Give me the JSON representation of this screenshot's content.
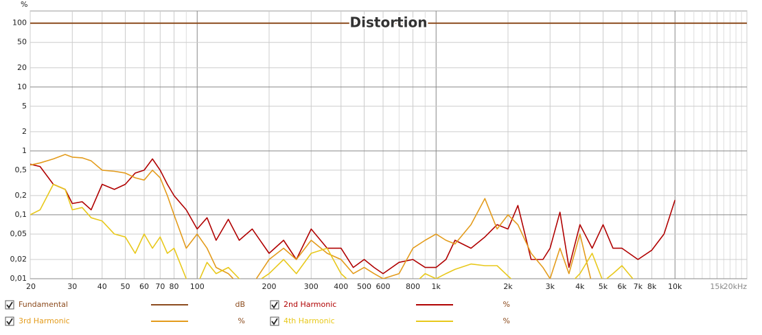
{
  "chart_data": {
    "type": "line",
    "title": "Distortion",
    "y_unit_label": "%",
    "xlim": [
      20,
      20000
    ],
    "ylim": [
      0.01,
      155
    ],
    "log_x": true,
    "log_y": true,
    "grid": true,
    "xticks": [
      20,
      30,
      40,
      50,
      60,
      70,
      80,
      100,
      200,
      300,
      400,
      500,
      600,
      800,
      {
        "value": 1000,
        "label": "1k"
      },
      {
        "value": 2000,
        "label": "2k"
      },
      {
        "value": 3000,
        "label": "3k"
      },
      {
        "value": 4000,
        "label": "4k"
      },
      {
        "value": 5000,
        "label": "5k"
      },
      {
        "value": 6000,
        "label": "6k"
      },
      {
        "value": 7000,
        "label": "7k"
      },
      {
        "value": 8000,
        "label": "8k"
      },
      {
        "value": 10000,
        "label": "10k"
      },
      {
        "value": 15000,
        "label": "15k"
      },
      {
        "value": 20000,
        "label": "20kHz"
      }
    ],
    "xminorticks": [
      90,
      700,
      900,
      9000,
      11000,
      12000,
      13000,
      14000,
      16000,
      17000,
      18000,
      19000
    ],
    "yticks": [
      100,
      50,
      20,
      10,
      5,
      2,
      1,
      {
        "value": 0.5,
        "label": "0,5"
      },
      {
        "value": 0.2,
        "label": "0,2"
      },
      {
        "value": 0.1,
        "label": "0,1"
      },
      {
        "value": 0.05,
        "label": "0,05"
      },
      {
        "value": 0.02,
        "label": "0,02"
      },
      {
        "value": 0.01,
        "label": "0,01"
      }
    ],
    "x": [
      20,
      22,
      25,
      28,
      30,
      33,
      36,
      40,
      45,
      50,
      55,
      60,
      65,
      70,
      75,
      80,
      90,
      100,
      110,
      120,
      135,
      150,
      170,
      200,
      230,
      260,
      300,
      350,
      400,
      450,
      500,
      550,
      600,
      700,
      800,
      900,
      1000,
      1100,
      1200,
      1400,
      1600,
      1800,
      2000,
      2200,
      2500,
      2800,
      3000,
      3300,
      3600,
      4000,
      4500,
      5000,
      5500,
      6000,
      7000,
      8000,
      9000,
      10000
    ],
    "series": [
      {
        "name": "Fundamental",
        "unit": "dB",
        "color": "#8b4a1c",
        "x": [
          20,
          20000
        ],
        "values": [
          100,
          100
        ]
      },
      {
        "name": "2nd Harmonic",
        "unit": "%",
        "color": "#b00000",
        "values": [
          0.62,
          0.57,
          0.3,
          0.25,
          0.15,
          0.16,
          0.12,
          0.3,
          0.25,
          0.3,
          0.45,
          0.5,
          0.75,
          0.5,
          0.3,
          0.2,
          0.12,
          0.06,
          0.09,
          0.04,
          0.085,
          0.04,
          0.06,
          0.025,
          0.04,
          0.02,
          0.06,
          0.03,
          0.03,
          0.015,
          0.02,
          0.015,
          0.012,
          0.018,
          0.02,
          0.015,
          0.015,
          0.02,
          0.04,
          0.03,
          0.045,
          0.07,
          0.06,
          0.14,
          0.02,
          0.02,
          0.03,
          0.11,
          0.015,
          0.07,
          0.03,
          0.07,
          0.03,
          0.03,
          0.02,
          0.028,
          0.05,
          0.17
        ]
      },
      {
        "name": "3rd Harmonic",
        "unit": "%",
        "color": "#e39b1b",
        "values": [
          0.6,
          0.65,
          0.75,
          0.88,
          0.8,
          0.78,
          0.7,
          0.5,
          0.48,
          0.45,
          0.38,
          0.35,
          0.5,
          0.38,
          0.2,
          0.1,
          0.03,
          0.05,
          0.03,
          0.015,
          0.012,
          0.008,
          0.008,
          0.02,
          0.03,
          0.02,
          0.04,
          0.025,
          0.02,
          0.012,
          0.015,
          0.012,
          0.01,
          0.012,
          0.03,
          0.04,
          0.05,
          0.04,
          0.035,
          0.07,
          0.18,
          0.06,
          0.1,
          0.07,
          0.025,
          0.015,
          0.01,
          0.03,
          0.012,
          0.05,
          0.008,
          null,
          null,
          null,
          null,
          null,
          null,
          null
        ]
      },
      {
        "name": "4th Harmonic",
        "unit": "%",
        "color": "#e8c81a",
        "values": [
          0.1,
          0.12,
          0.3,
          0.25,
          0.12,
          0.13,
          0.09,
          0.08,
          0.05,
          0.045,
          0.025,
          0.05,
          0.03,
          0.045,
          0.025,
          0.03,
          0.01,
          0.008,
          0.018,
          0.012,
          0.015,
          0.01,
          0.008,
          0.012,
          0.02,
          0.012,
          0.025,
          0.03,
          0.012,
          0.008,
          0.009,
          0.01,
          0.008,
          0.01,
          0.008,
          0.012,
          0.01,
          0.012,
          0.014,
          0.017,
          0.016,
          0.016,
          0.011,
          0.008,
          0.008,
          0.008,
          0.008,
          0.008,
          0.008,
          0.012,
          0.025,
          0.009,
          0.012,
          0.016,
          0.008,
          null,
          null,
          null
        ]
      }
    ]
  }
}
